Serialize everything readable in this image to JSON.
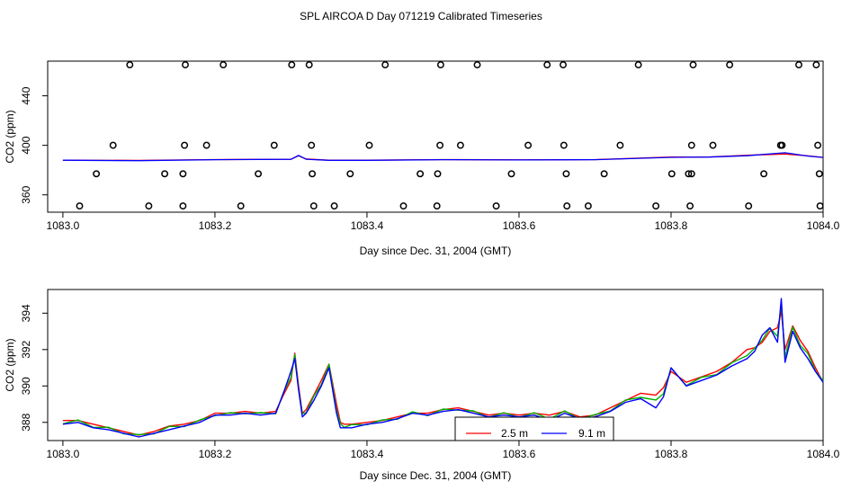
{
  "figure_title": "SPL AIRCOA D  Day 071219  Calibrated Timeseries",
  "colors": {
    "series_2_5m": "#ff0000",
    "series_9_1m": "#0000ff",
    "series_mid": "#00b000",
    "circle": "#000000"
  },
  "chart_data": [
    {
      "type": "line+scatter",
      "title": "",
      "xlabel": "Day since Dec. 31, 2004 (GMT)",
      "ylabel": "CO2 (ppm)",
      "xlim": [
        1082.98,
        1084.0
      ],
      "ylim": [
        346,
        468
      ],
      "x_ticks": [
        1083.0,
        1083.2,
        1083.4,
        1083.6,
        1083.8,
        1084.0
      ],
      "x_tick_labels": [
        "1083.0",
        "1083.2",
        "1083.4",
        "1083.6",
        "1083.8",
        "1084.0"
      ],
      "y_ticks": [
        360,
        400,
        440
      ],
      "y_tick_labels": [
        "360",
        "400",
        "440"
      ],
      "scatter_points": [
        {
          "x": 1083.088,
          "y": 465
        },
        {
          "x": 1083.161,
          "y": 465
        },
        {
          "x": 1083.211,
          "y": 465
        },
        {
          "x": 1083.301,
          "y": 465
        },
        {
          "x": 1083.324,
          "y": 465
        },
        {
          "x": 1083.424,
          "y": 465
        },
        {
          "x": 1083.497,
          "y": 465
        },
        {
          "x": 1083.545,
          "y": 465
        },
        {
          "x": 1083.637,
          "y": 465
        },
        {
          "x": 1083.658,
          "y": 465
        },
        {
          "x": 1083.757,
          "y": 465
        },
        {
          "x": 1083.829,
          "y": 465
        },
        {
          "x": 1083.877,
          "y": 465
        },
        {
          "x": 1083.968,
          "y": 465
        },
        {
          "x": 1083.991,
          "y": 465
        },
        {
          "x": 1083.066,
          "y": 400
        },
        {
          "x": 1083.16,
          "y": 400
        },
        {
          "x": 1083.189,
          "y": 400
        },
        {
          "x": 1083.278,
          "y": 400
        },
        {
          "x": 1083.327,
          "y": 400
        },
        {
          "x": 1083.403,
          "y": 400
        },
        {
          "x": 1083.496,
          "y": 400
        },
        {
          "x": 1083.523,
          "y": 400
        },
        {
          "x": 1083.612,
          "y": 400
        },
        {
          "x": 1083.659,
          "y": 400
        },
        {
          "x": 1083.733,
          "y": 400
        },
        {
          "x": 1083.827,
          "y": 400
        },
        {
          "x": 1083.855,
          "y": 400
        },
        {
          "x": 1083.944,
          "y": 400
        },
        {
          "x": 1083.946,
          "y": 400
        },
        {
          "x": 1083.993,
          "y": 400
        },
        {
          "x": 1083.044,
          "y": 377
        },
        {
          "x": 1083.134,
          "y": 377
        },
        {
          "x": 1083.158,
          "y": 377
        },
        {
          "x": 1083.257,
          "y": 377
        },
        {
          "x": 1083.328,
          "y": 377
        },
        {
          "x": 1083.378,
          "y": 377
        },
        {
          "x": 1083.47,
          "y": 377
        },
        {
          "x": 1083.493,
          "y": 377
        },
        {
          "x": 1083.59,
          "y": 377
        },
        {
          "x": 1083.662,
          "y": 377
        },
        {
          "x": 1083.712,
          "y": 377
        },
        {
          "x": 1083.801,
          "y": 377
        },
        {
          "x": 1083.823,
          "y": 377
        },
        {
          "x": 1083.827,
          "y": 377
        },
        {
          "x": 1083.922,
          "y": 377
        },
        {
          "x": 1083.995,
          "y": 377
        },
        {
          "x": 1083.022,
          "y": 351
        },
        {
          "x": 1083.113,
          "y": 351
        },
        {
          "x": 1083.158,
          "y": 351
        },
        {
          "x": 1083.234,
          "y": 351
        },
        {
          "x": 1083.33,
          "y": 351
        },
        {
          "x": 1083.357,
          "y": 351
        },
        {
          "x": 1083.448,
          "y": 351
        },
        {
          "x": 1083.492,
          "y": 351
        },
        {
          "x": 1083.57,
          "y": 351
        },
        {
          "x": 1083.663,
          "y": 351
        },
        {
          "x": 1083.691,
          "y": 351
        },
        {
          "x": 1083.78,
          "y": 351
        },
        {
          "x": 1083.825,
          "y": 351
        },
        {
          "x": 1083.902,
          "y": 351
        },
        {
          "x": 1083.996,
          "y": 351
        }
      ],
      "line_series": [
        {
          "name": "2.5 m",
          "x": [
            1083.0,
            1083.1,
            1083.2,
            1083.3,
            1083.31,
            1083.32,
            1083.35,
            1083.4,
            1083.5,
            1083.6,
            1083.7,
            1083.8,
            1083.85,
            1083.9,
            1083.95,
            1083.98,
            1084.0
          ],
          "values": [
            388,
            387.8,
            388.5,
            388.8,
            391.5,
            389,
            388,
            388,
            388.5,
            388.3,
            388.5,
            390.5,
            390.6,
            392,
            393,
            391.5,
            390.2
          ]
        },
        {
          "name": "9.1 m",
          "x": [
            1083.0,
            1083.1,
            1083.2,
            1083.3,
            1083.31,
            1083.32,
            1083.35,
            1083.4,
            1083.5,
            1083.6,
            1083.7,
            1083.8,
            1083.85,
            1083.9,
            1083.95,
            1083.98,
            1084.0
          ],
          "values": [
            388,
            387.6,
            388.4,
            388.7,
            391.8,
            388.8,
            387.9,
            387.9,
            388.4,
            388.2,
            388.4,
            390.3,
            390.5,
            391.6,
            394,
            391.3,
            390.2
          ]
        }
      ]
    },
    {
      "type": "line",
      "title": "",
      "xlabel": "Day since Dec. 31, 2004 (GMT)",
      "ylabel": "CO2 (ppm)",
      "xlim": [
        1082.98,
        1084.0
      ],
      "ylim": [
        387.0,
        395.3
      ],
      "x_ticks": [
        1083.0,
        1083.2,
        1083.4,
        1083.6,
        1083.8,
        1084.0
      ],
      "x_tick_labels": [
        "1083.0",
        "1083.2",
        "1083.4",
        "1083.6",
        "1083.8",
        "1084.0"
      ],
      "y_ticks": [
        388,
        390,
        392,
        394
      ],
      "y_tick_labels": [
        "388",
        "390",
        "392",
        "394"
      ],
      "legend": {
        "placement": "bottom-center",
        "entries": [
          "2.5 m",
          "9.1 m"
        ]
      },
      "x": [
        1083.0,
        1083.02,
        1083.04,
        1083.06,
        1083.08,
        1083.1,
        1083.12,
        1083.14,
        1083.16,
        1083.18,
        1083.2,
        1083.22,
        1083.24,
        1083.26,
        1083.28,
        1083.29,
        1083.3,
        1083.305,
        1083.31,
        1083.315,
        1083.32,
        1083.33,
        1083.34,
        1083.35,
        1083.36,
        1083.365,
        1083.37,
        1083.38,
        1083.4,
        1083.42,
        1083.44,
        1083.46,
        1083.48,
        1083.5,
        1083.52,
        1083.54,
        1083.56,
        1083.58,
        1083.6,
        1083.62,
        1083.64,
        1083.66,
        1083.68,
        1083.7,
        1083.72,
        1083.74,
        1083.76,
        1083.78,
        1083.79,
        1083.8,
        1083.82,
        1083.84,
        1083.86,
        1083.88,
        1083.9,
        1083.91,
        1083.92,
        1083.93,
        1083.94,
        1083.945,
        1083.95,
        1083.96,
        1083.97,
        1083.98,
        1083.99,
        1084.0
      ],
      "series": [
        {
          "name": "2.5 m",
          "values": [
            388.1,
            388.1,
            387.9,
            387.7,
            387.5,
            387.3,
            387.5,
            387.8,
            387.9,
            388.1,
            388.5,
            388.5,
            388.6,
            388.5,
            388.6,
            389.5,
            390.3,
            391.8,
            390.0,
            388.5,
            388.7,
            389.5,
            390.3,
            391.2,
            389.0,
            388.0,
            387.9,
            387.9,
            388.0,
            388.1,
            388.3,
            388.5,
            388.5,
            388.7,
            388.8,
            388.6,
            388.4,
            388.5,
            388.4,
            388.5,
            388.4,
            388.6,
            388.3,
            388.4,
            388.8,
            389.2,
            389.6,
            389.5,
            389.9,
            390.8,
            390.2,
            390.5,
            390.8,
            391.3,
            392.0,
            392.1,
            392.4,
            393.0,
            393.2,
            394.1,
            392.0,
            393.3,
            392.5,
            391.9,
            391.0,
            390.2
          ]
        },
        {
          "name": "9.1 m",
          "values": [
            387.9,
            388.0,
            387.7,
            387.6,
            387.4,
            387.2,
            387.4,
            387.6,
            387.8,
            388.0,
            388.4,
            388.4,
            388.5,
            388.4,
            388.5,
            389.6,
            390.8,
            391.5,
            389.8,
            388.3,
            388.5,
            389.2,
            390.0,
            391.0,
            388.5,
            387.7,
            387.7,
            387.7,
            387.9,
            388.0,
            388.2,
            388.5,
            388.4,
            388.6,
            388.7,
            388.5,
            388.3,
            388.4,
            388.3,
            388.4,
            388.1,
            388.5,
            388.2,
            388.3,
            388.6,
            389.1,
            389.3,
            388.8,
            389.4,
            391.0,
            390.0,
            390.3,
            390.6,
            391.1,
            391.5,
            391.9,
            392.8,
            393.2,
            392.4,
            394.8,
            391.3,
            393.0,
            392.1,
            391.5,
            390.8,
            390.2
          ]
        }
      ]
    }
  ]
}
